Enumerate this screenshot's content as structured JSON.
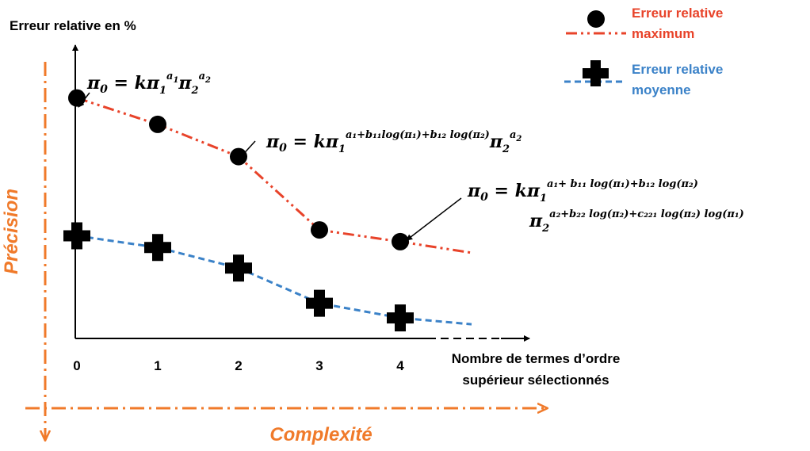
{
  "chart_data": {
    "type": "line",
    "ylabel": "Erreur relative en %",
    "xlabel_line1": "Nombre de termes d’ordre",
    "xlabel_line2": "supérieur sélectionnés",
    "categories": [
      "0",
      "1",
      "2",
      "3",
      "4"
    ],
    "x": [
      0,
      1,
      2,
      3,
      4
    ],
    "series": [
      {
        "key": "max",
        "name_line1": "Erreur relative",
        "name_line2": "maximum",
        "values": [
          82,
          73,
          62,
          37,
          33
        ],
        "color": "#e8432a",
        "marker": "circle"
      },
      {
        "key": "mean",
        "name_line1": "Erreur  relative",
        "name_line2": "moyenne",
        "values": [
          35,
          31,
          24,
          12,
          7
        ],
        "color": "#3b82c8",
        "marker": "cross"
      }
    ],
    "ylim": [
      0,
      100
    ],
    "grid": false,
    "legend": "top-right",
    "annotations": [
      "π₀ = kπ₁^a₁ π₂^a₂",
      "π₀ = kπ₁^(a₁+b₁₁log(π₁)+b₁₂ log(π₂)) π₂^a₂",
      "π₀ = kπ₁^(a₁+b₁₁ log(π₁)+b₁₂ log(π₂)) π₂^(a₂+b₂₂ log(π₂)+c₂₂₁ log(π₂) log(π₁))"
    ]
  },
  "meta_axes": {
    "vertical": "Précision",
    "horizontal": "Complexité",
    "color": "#f07a2a"
  }
}
